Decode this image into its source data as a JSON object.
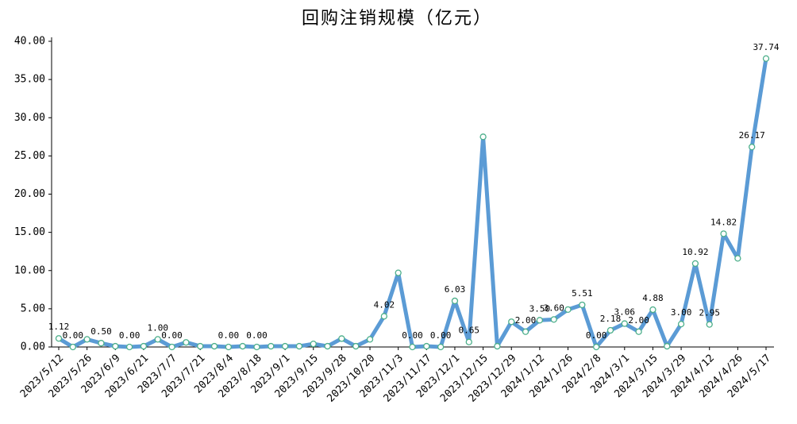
{
  "chart_data": {
    "type": "line",
    "title": "回购注销规模（亿元）",
    "categories": [
      "2023/5/12",
      null,
      "2023/5/26",
      null,
      "2023/6/9",
      null,
      "2023/6/21",
      null,
      "2023/7/7",
      null,
      "2023/7/21",
      null,
      "2023/8/4",
      null,
      "2023/8/18",
      null,
      "2023/9/1",
      null,
      "2023/9/15",
      null,
      "2023/9/28",
      null,
      "2023/10/20",
      null,
      "2023/11/3",
      null,
      "2023/11/17",
      null,
      "2023/12/1",
      null,
      "2023/12/15",
      null,
      "2023/12/29",
      null,
      "2024/1/12",
      null,
      "2024/1/26",
      null,
      "2024/2/8",
      null,
      "2024/3/1",
      null,
      "2024/3/15",
      null,
      "2024/3/29",
      null,
      "2024/4/12",
      null,
      "2024/4/26",
      null,
      "2024/5/17"
    ],
    "series": [
      {
        "name": "回购注销规模",
        "color": "#5b9bd5",
        "marker_color": "#4caf8a",
        "values": [
          1.12,
          0,
          1.0,
          0.5,
          0.1,
          0,
          0.1,
          1.0,
          0,
          0.6,
          0.1,
          0.1,
          0,
          0.1,
          0,
          0.1,
          0.1,
          0.1,
          0.4,
          0.1,
          1.1,
          0.1,
          1.0,
          4.02,
          9.7,
          0,
          0.1,
          0,
          6.03,
          0.65,
          27.5,
          0.1,
          3.3,
          2.0,
          3.5,
          3.6,
          4.9,
          5.51,
          0,
          2.18,
          3.06,
          2.0,
          4.88,
          0.1,
          3.0,
          10.92,
          2.95,
          14.82,
          11.6,
          26.17,
          37.74
        ],
        "value_labels": [
          "1.12",
          "0.00",
          null,
          "0.50",
          null,
          "0.00",
          null,
          "1.00",
          "0.00",
          null,
          null,
          null,
          "0.00",
          null,
          "0.00",
          null,
          null,
          null,
          null,
          null,
          null,
          null,
          null,
          "4.02",
          null,
          "0.00",
          null,
          "0.00",
          "6.03",
          "0.65",
          null,
          null,
          null,
          "2.00",
          "3.50",
          "3.60",
          null,
          "5.51",
          "0.00",
          "2.18",
          "3.06",
          "2.00",
          "4.88",
          null,
          "3.00",
          "10.92",
          "2.95",
          "14.82",
          null,
          "26.17",
          "37.74"
        ]
      }
    ],
    "ylim": [
      0,
      40
    ],
    "yticks": [
      {
        "value": 0,
        "label": "0.00"
      },
      {
        "value": 5,
        "label": "5.00"
      },
      {
        "value": 10,
        "label": "10.00"
      },
      {
        "value": 15,
        "label": "15.00"
      },
      {
        "value": 20,
        "label": "20.00"
      },
      {
        "value": 25,
        "label": "25.00"
      },
      {
        "value": 30,
        "label": "30.00"
      },
      {
        "value": 35,
        "label": "35.00"
      },
      {
        "value": 40,
        "label": "40.00"
      }
    ],
    "grid": false
  }
}
